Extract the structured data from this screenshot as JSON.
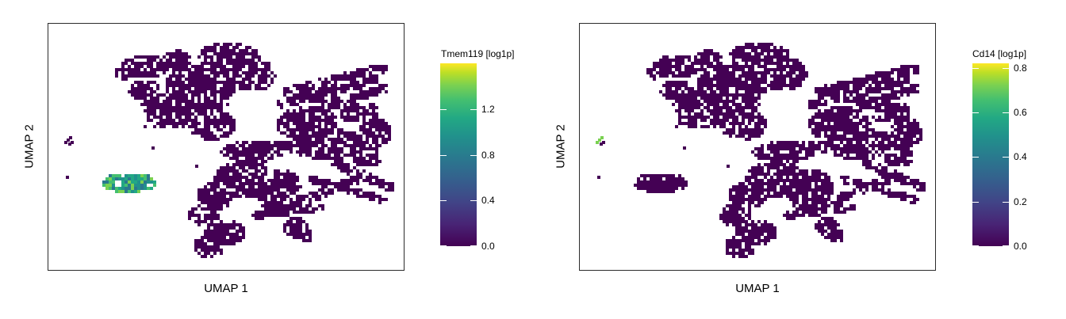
{
  "chart_data": [
    {
      "type": "scatter",
      "xlabel": "UMAP 1",
      "ylabel": "UMAP 2",
      "colorbar": {
        "title": "Tmem119 [log1p]",
        "range": [
          0,
          1.6
        ],
        "ticks": [
          "0.0",
          "0.4",
          "0.8",
          "1.2"
        ],
        "tick_values": [
          0,
          0.4,
          0.8,
          1.2
        ],
        "colormap": "viridis"
      },
      "grid": false,
      "highlight_cluster": "lower-left",
      "highlight_level": 0.7
    },
    {
      "type": "scatter",
      "xlabel": "UMAP 1",
      "ylabel": "UMAP 2",
      "colorbar": {
        "title": "Cd14 [log1p]",
        "range": [
          0,
          0.82
        ],
        "ticks": [
          "0.0",
          "0.2",
          "0.4",
          "0.6",
          "0.8"
        ],
        "tick_values": [
          0,
          0.2,
          0.4,
          0.6,
          0.8
        ],
        "colormap": "viridis"
      },
      "grid": false,
      "highlight_cluster": "far-left small",
      "highlight_level": 0.8
    }
  ]
}
